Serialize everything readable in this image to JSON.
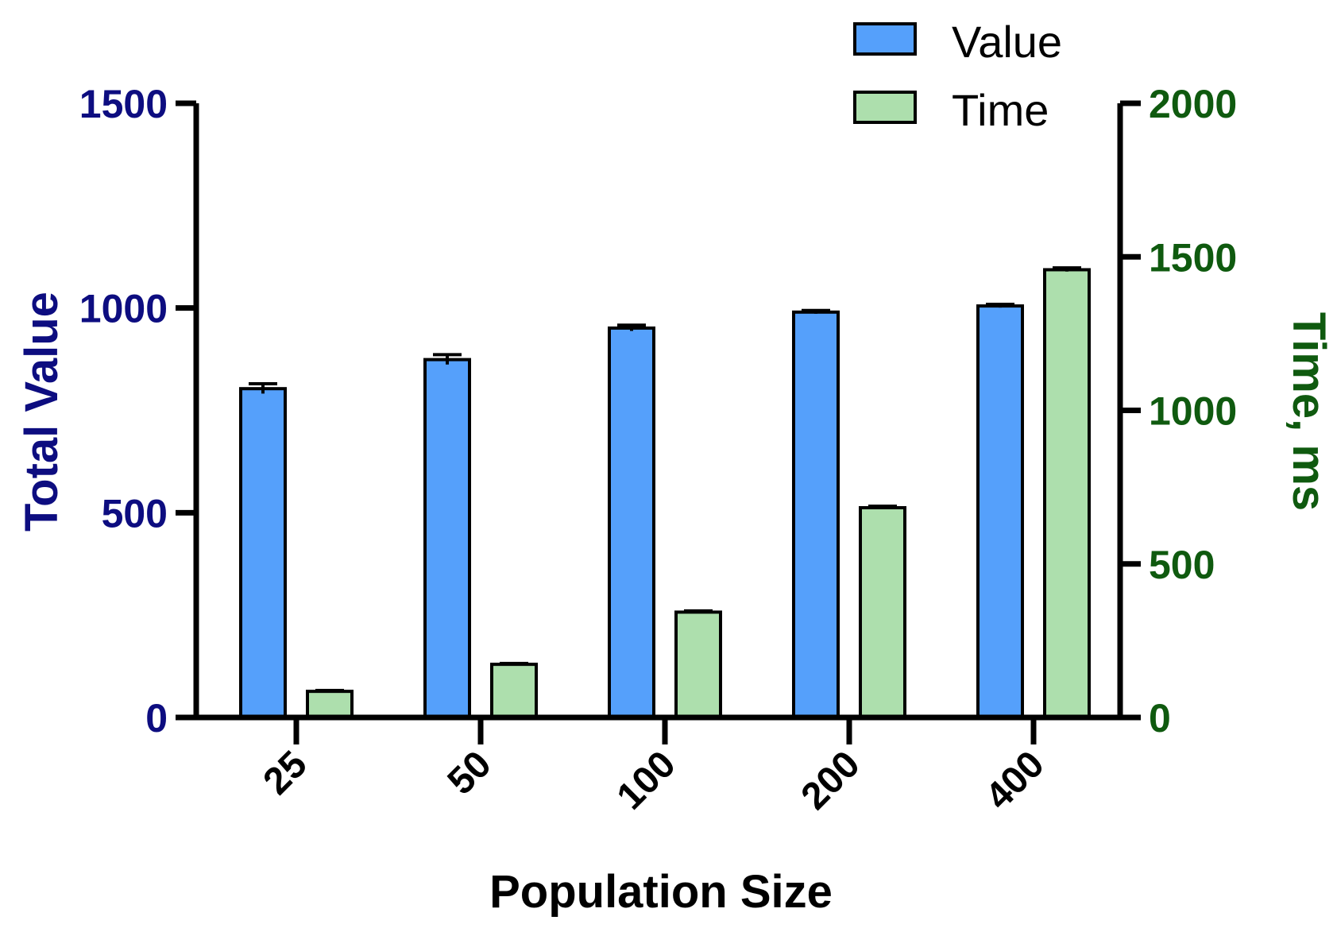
{
  "chart_data": {
    "type": "bar",
    "categories": [
      "25",
      "50",
      "100",
      "200",
      "400"
    ],
    "xlabel": "Population Size",
    "series": [
      {
        "name": "Value",
        "axis": "left",
        "color": "#55a0fb",
        "values": [
          803,
          874,
          951,
          990,
          1005
        ],
        "errors": [
          12,
          12,
          7,
          4,
          4
        ]
      },
      {
        "name": "Time",
        "axis": "right",
        "color": "#addfad",
        "values": [
          85,
          173,
          343,
          683,
          1458
        ],
        "errors": [
          3,
          3,
          4,
          5,
          6
        ]
      }
    ],
    "y_left": {
      "label": "Total Value",
      "ylim": [
        0,
        1500
      ],
      "ticks": [
        0,
        500,
        1000,
        1500
      ],
      "color": "#0d0d80"
    },
    "y_right": {
      "label": "Time, ms",
      "ylim": [
        0,
        2000
      ],
      "ticks": [
        0,
        500,
        1000,
        1500,
        2000
      ],
      "color": "#0f5a0f"
    },
    "legend": {
      "placement": "top-right",
      "entries": [
        "Value",
        "Time"
      ]
    },
    "grid": false
  }
}
